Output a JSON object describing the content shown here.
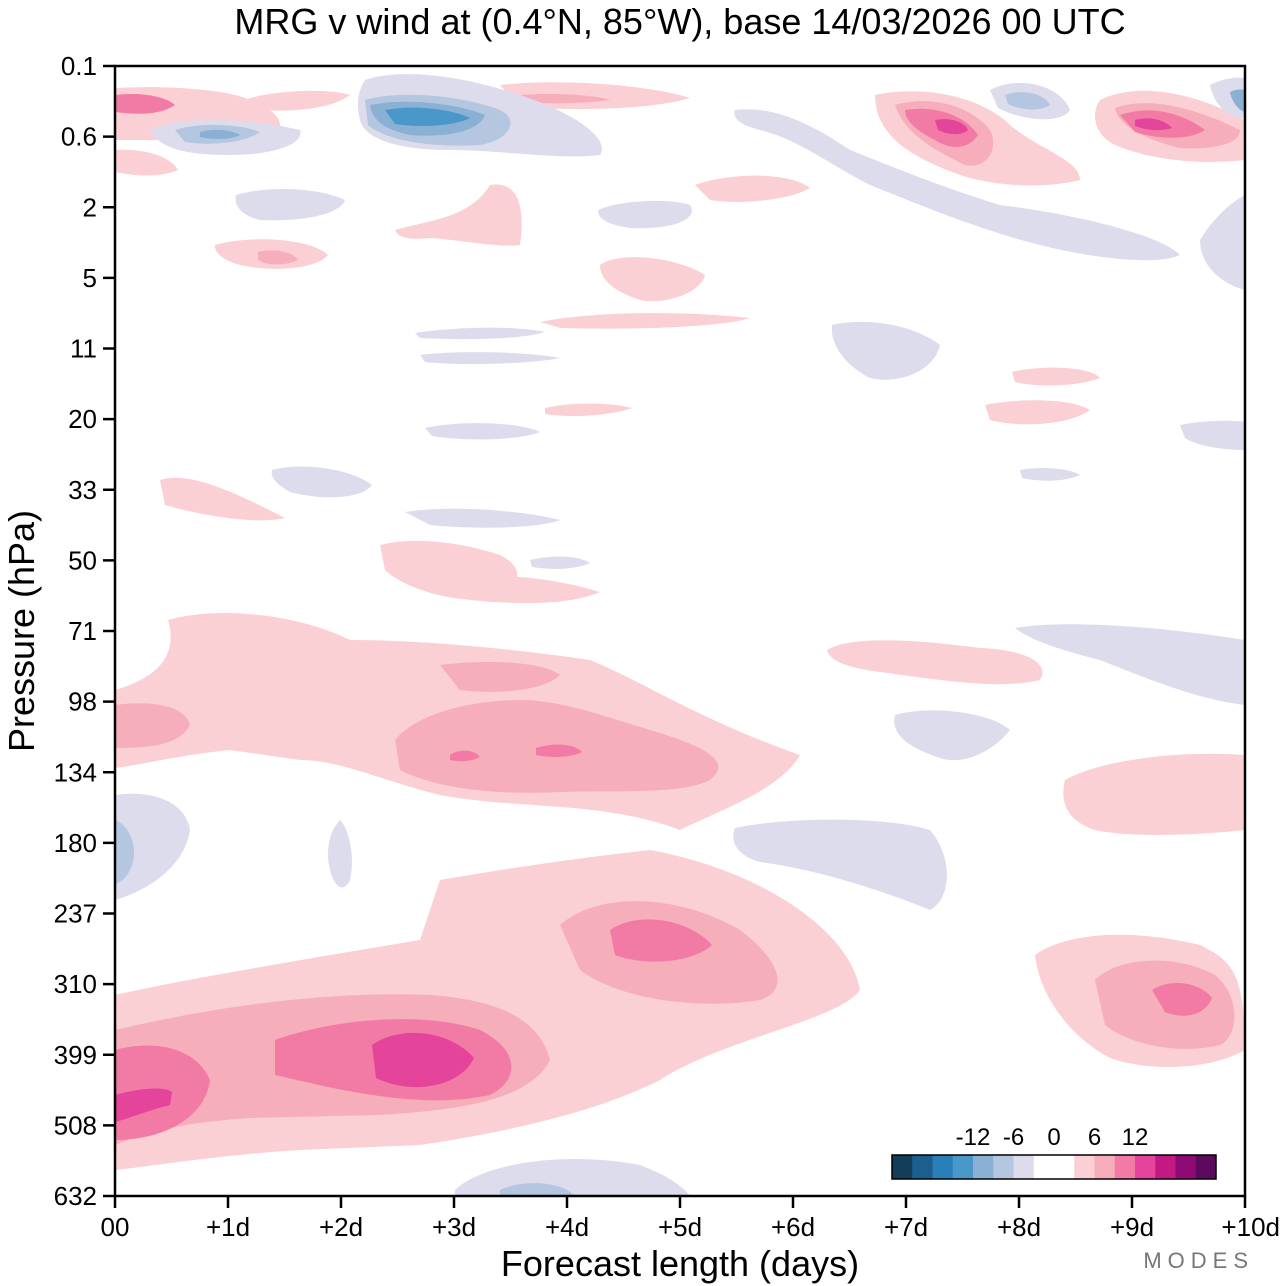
{
  "chart_data": {
    "type": "heatmap",
    "title": "MRG v wind at (0.4°N, 85°W),  base 14/03/2026  00 UTC",
    "xlabel": "Forecast length (days)",
    "ylabel": "Pressure (hPa)",
    "x_ticks": [
      "00",
      "+1d",
      "+2d",
      "+3d",
      "+4d",
      "+5d",
      "+6d",
      "+7d",
      "+8d",
      "+9d",
      "+10d"
    ],
    "x_range_days": [
      0,
      10
    ],
    "y_ticks": [
      "0.1",
      "0.6",
      "2",
      "5",
      "11",
      "20",
      "33",
      "50",
      "71",
      "98",
      "134",
      "180",
      "237",
      "310",
      "399",
      "508",
      "632"
    ],
    "y_axis": "log-pressure, top to bottom",
    "colorbar": {
      "labels": [
        "-12",
        "-6",
        "0",
        "6",
        "12"
      ],
      "levels": [
        -18,
        -15,
        -12,
        -9,
        -6,
        -3,
        0,
        3,
        6,
        9,
        12,
        15,
        18
      ],
      "colors": [
        "#143d59",
        "#1b5f8f",
        "#2a7fb8",
        "#4a97c9",
        "#8ab0d4",
        "#b5c6e0",
        "#dcdcec",
        "#ffffff",
        "#ffffff",
        "#fad0d4",
        "#f6aebb",
        "#f27ba6",
        "#e5449b",
        "#c21a82",
        "#8e0a74",
        "#5c0a5e"
      ]
    },
    "contour_features": [
      {
        "day": 3.0,
        "hPa": 0.45,
        "v": -9
      },
      {
        "day": 1.0,
        "hPa": 0.6,
        "v": -6
      },
      {
        "day": 8.0,
        "hPa": 0.35,
        "v": -6
      },
      {
        "day": 10.0,
        "hPa": 0.35,
        "v": -6
      },
      {
        "day": 0.1,
        "hPa": 185,
        "v": -3
      },
      {
        "day": 7.3,
        "hPa": 0.55,
        "v": 12
      },
      {
        "day": 9.2,
        "hPa": 0.55,
        "v": 12
      },
      {
        "day": 0.1,
        "hPa": 0.3,
        "v": 9
      },
      {
        "day": 3.0,
        "hPa": 130,
        "v": 6
      },
      {
        "day": 4.0,
        "hPa": 125,
        "v": 6
      },
      {
        "day": 4.8,
        "hPa": 250,
        "v": 9
      },
      {
        "day": 2.7,
        "hPa": 390,
        "v": 12
      },
      {
        "day": 0.3,
        "hPa": 470,
        "v": 12
      },
      {
        "day": 9.5,
        "hPa": 330,
        "v": 9
      },
      {
        "day": 0.6,
        "hPa": 115,
        "v": 3
      }
    ]
  },
  "watermark": "MODES"
}
